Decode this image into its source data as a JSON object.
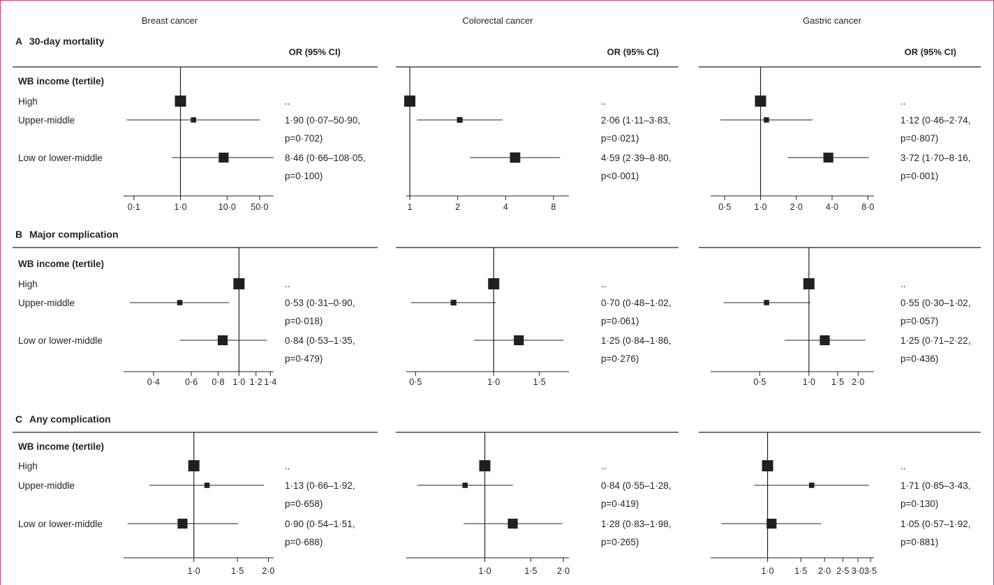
{
  "columns": [
    "Breast cancer",
    "Colorectal cancer",
    "Gastric cancer"
  ],
  "group_label": "WB income (tertile)",
  "row_labels": [
    "High",
    "Upper-middle",
    "Low or lower-middle"
  ],
  "or_header": "OR (95% CI)",
  "colors": {
    "ink": "#231f20",
    "frame": "#c9437e"
  },
  "chart_data": [
    {
      "type": "forest",
      "section_letter": "A",
      "section_title": "30-day mortality",
      "scale": "log",
      "panels": [
        {
          "cancer": "Breast cancer",
          "xlim": [
            0.06,
            100
          ],
          "ticks": [
            0.1,
            1.0,
            10.0,
            50.0
          ],
          "tick_labels": [
            "0·1",
            "1·0",
            "10·0",
            "50·0"
          ],
          "rows": [
            {
              "label": "High",
              "or": 1.0,
              "lo": null,
              "hi": null,
              "weight": 1.0,
              "text1": "..",
              "text2": ""
            },
            {
              "label": "Upper-middle",
              "or": 1.9,
              "lo": 0.07,
              "hi": 50.9,
              "weight": 0.3,
              "text1": "1·90 (0·07–50·90,",
              "text2": "p=0·702)"
            },
            {
              "label": "Low or lower-middle",
              "or": 8.46,
              "lo": 0.66,
              "hi": 108.05,
              "weight": 0.85,
              "text1": "8·46 (0·66–108·05,",
              "text2": "p=0·100)"
            }
          ]
        },
        {
          "cancer": "Colorectal cancer",
          "xlim": [
            0.95,
            10
          ],
          "ticks": [
            1,
            2,
            4,
            8
          ],
          "tick_labels": [
            "1",
            "2",
            "4",
            "8"
          ],
          "rows": [
            {
              "label": "High",
              "or": 1.0,
              "lo": null,
              "hi": null,
              "weight": 1.0,
              "text1": "..",
              "text2": ""
            },
            {
              "label": "Upper-middle",
              "or": 2.06,
              "lo": 1.11,
              "hi": 3.83,
              "weight": 0.35,
              "text1": "2·06 (1·11–3·83,",
              "text2": "p=0·021)"
            },
            {
              "label": "Low or lower-middle",
              "or": 4.59,
              "lo": 2.39,
              "hi": 8.8,
              "weight": 0.9,
              "text1": "4·59 (2·39–8·80,",
              "text2": "p<0·001)"
            }
          ]
        },
        {
          "cancer": "Gastric cancer",
          "xlim": [
            0.38,
            9
          ],
          "ticks": [
            0.5,
            1.0,
            2.0,
            4.0,
            8.0
          ],
          "tick_labels": [
            "0·5",
            "1·0",
            "2·0",
            "4·0",
            "8·0"
          ],
          "rows": [
            {
              "label": "High",
              "or": 1.0,
              "lo": null,
              "hi": null,
              "weight": 1.0,
              "text1": "..",
              "text2": ""
            },
            {
              "label": "Upper-middle",
              "or": 1.12,
              "lo": 0.46,
              "hi": 2.74,
              "weight": 0.3,
              "text1": "1·12 (0·46–2·74,",
              "text2": "p=0·807)"
            },
            {
              "label": "Low or lower-middle",
              "or": 3.72,
              "lo": 1.7,
              "hi": 8.16,
              "weight": 0.85,
              "text1": "3·72 (1·70–8·16,",
              "text2": "p=0·001)"
            }
          ]
        }
      ]
    },
    {
      "type": "forest",
      "section_letter": "B",
      "section_title": "Major complication",
      "scale": "log",
      "panels": [
        {
          "cancer": "Breast cancer",
          "xlim": [
            0.29,
            1.45
          ],
          "ticks": [
            0.4,
            0.6,
            0.8,
            1.0,
            1.2,
            1.4
          ],
          "tick_labels": [
            "0·4",
            "0·6",
            "0·8",
            "1·0",
            "1·2",
            "1·4"
          ],
          "rows": [
            {
              "label": "High",
              "or": 1.0,
              "lo": null,
              "hi": null,
              "weight": 1.0,
              "text1": "..",
              "text2": ""
            },
            {
              "label": "Upper-middle",
              "or": 0.53,
              "lo": 0.31,
              "hi": 0.9,
              "weight": 0.3,
              "text1": "0·53 (0·31–0·90,",
              "text2": "p=0·018)"
            },
            {
              "label": "Low or lower-middle",
              "or": 0.84,
              "lo": 0.53,
              "hi": 1.35,
              "weight": 0.85,
              "text1": "0·84 (0·53–1·35,",
              "text2": "p=0·479)"
            }
          ]
        },
        {
          "cancer": "Colorectal cancer",
          "xlim": [
            0.46,
            1.95
          ],
          "ticks": [
            0.5,
            1.0,
            1.5
          ],
          "tick_labels": [
            "0·5",
            "1·0",
            "1·5"
          ],
          "rows": [
            {
              "label": "High",
              "or": 1.0,
              "lo": null,
              "hi": null,
              "weight": 1.0,
              "text1": "..",
              "text2": ""
            },
            {
              "label": "Upper-middle",
              "or": 0.7,
              "lo": 0.48,
              "hi": 1.02,
              "weight": 0.35,
              "text1": "0·70 (0·48–1·02,",
              "text2": "p=0·061)"
            },
            {
              "label": "Low or lower-middle",
              "or": 1.25,
              "lo": 0.84,
              "hi": 1.86,
              "weight": 0.85,
              "text1": "1·25 (0·84–1·86,",
              "text2": "p=0·276)"
            }
          ]
        },
        {
          "cancer": "Gastric cancer",
          "xlim": [
            0.25,
            2.5
          ],
          "ticks": [
            0.5,
            1.0,
            1.5,
            2.0
          ],
          "tick_labels": [
            "0·5",
            "1·0",
            "1·5",
            "2·0"
          ],
          "rows": [
            {
              "label": "High",
              "or": 1.0,
              "lo": null,
              "hi": null,
              "weight": 1.0,
              "text1": "..",
              "text2": ""
            },
            {
              "label": "Upper-middle",
              "or": 0.55,
              "lo": 0.3,
              "hi": 1.02,
              "weight": 0.3,
              "text1": "0·55 (0·30–1·02,",
              "text2": "p=0·057)"
            },
            {
              "label": "Low or lower-middle",
              "or": 1.25,
              "lo": 0.71,
              "hi": 2.22,
              "weight": 0.85,
              "text1": "1·25 (0·71–2·22,",
              "text2": "p=0·436)"
            }
          ]
        }
      ]
    },
    {
      "type": "forest",
      "section_letter": "C",
      "section_title": "Any complication",
      "scale": "log",
      "panels": [
        {
          "cancer": "Breast cancer",
          "xlim": [
            0.52,
            2.1
          ],
          "ticks": [
            1.0,
            1.5,
            2.0
          ],
          "tick_labels": [
            "1·0",
            "1·5",
            "2·0"
          ],
          "rows": [
            {
              "label": "High",
              "or": 1.0,
              "lo": null,
              "hi": null,
              "weight": 1.0,
              "text1": "..",
              "text2": ""
            },
            {
              "label": "Upper-middle",
              "or": 1.13,
              "lo": 0.66,
              "hi": 1.92,
              "weight": 0.3,
              "text1": "1·13 (0·66–1·92,",
              "text2": "p=0·658)"
            },
            {
              "label": "Low or lower-middle",
              "or": 0.9,
              "lo": 0.54,
              "hi": 1.51,
              "weight": 0.85,
              "text1": "0·90 (0·54–1·51,",
              "text2": "p=0·688)"
            }
          ]
        },
        {
          "cancer": "Colorectal cancer",
          "xlim": [
            0.5,
            2.1
          ],
          "ticks": [
            1.0,
            1.5,
            2.0
          ],
          "tick_labels": [
            "1·0",
            "1·5",
            "2·0"
          ],
          "rows": [
            {
              "label": "High",
              "or": 1.0,
              "lo": null,
              "hi": null,
              "weight": 1.0,
              "text1": "..",
              "text2": ""
            },
            {
              "label": "Upper-middle",
              "or": 0.84,
              "lo": 0.55,
              "hi": 1.28,
              "weight": 0.3,
              "text1": "0·84 (0·55–1·28,",
              "text2": "p=0·419)"
            },
            {
              "label": "Low or lower-middle",
              "or": 1.28,
              "lo": 0.83,
              "hi": 1.98,
              "weight": 0.85,
              "text1": "1·28 (0·83–1·98,",
              "text2": "p=0·265)"
            }
          ]
        },
        {
          "cancer": "Gastric cancer",
          "xlim": [
            0.5,
            3.65
          ],
          "ticks": [
            1.0,
            1.5,
            2.0,
            2.5,
            3.0,
            3.5
          ],
          "tick_labels": [
            "1·0",
            "1·5",
            "2·0",
            "2·5",
            "3·0",
            "3·5"
          ],
          "rows": [
            {
              "label": "High",
              "or": 1.0,
              "lo": null,
              "hi": null,
              "weight": 1.0,
              "text1": "..",
              "text2": ""
            },
            {
              "label": "Upper-middle",
              "or": 1.71,
              "lo": 0.85,
              "hi": 3.43,
              "weight": 0.3,
              "text1": "1·71 (0·85–3·43,",
              "text2": "p=0·130)"
            },
            {
              "label": "Low or lower-middle",
              "or": 1.05,
              "lo": 0.57,
              "hi": 1.92,
              "weight": 0.85,
              "text1": "1·05 (0·57–1·92,",
              "text2": "p=0·881)"
            }
          ]
        }
      ]
    }
  ]
}
